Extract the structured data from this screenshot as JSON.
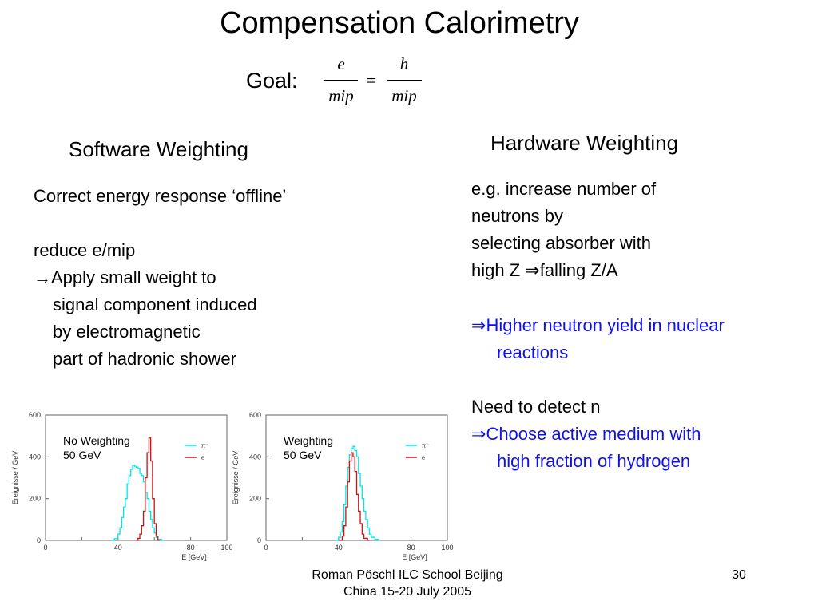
{
  "title": "Compensation Calorimetry",
  "goal": {
    "label": "Goal:",
    "left_numerator": "e",
    "left_denominator": "mip",
    "equals": "=",
    "right_numerator": "h",
    "right_denominator": "mip"
  },
  "software": {
    "heading": "Software Weighting",
    "line1": "Correct energy response ‘offline’",
    "line2": "reduce e/mip",
    "arrow": "→",
    "line3": "Apply small weight to",
    "line4": "signal component induced",
    "line5": "by electromagnetic",
    "line6": "part of hadronic shower"
  },
  "hardware": {
    "heading": "Hardware Weighting",
    "line1": "e.g. increase number of",
    "line2": "neutrons by",
    "line3": "selecting absorber with",
    "line4_a": "high Z ",
    "implies": "⇒",
    "line4_b": "falling Z/A",
    "blue1_a": "Higher neutron yield in nuclear",
    "blue1_b": "reactions",
    "line5": "Need to detect n",
    "blue2_a": "Choose active medium with",
    "blue2_b": "high fraction of hydrogen",
    "blue_color": "#1010e8"
  },
  "chart_data": [
    {
      "type": "line",
      "annotation_line1": "No Weighting",
      "annotation_line2": "50 GeV",
      "ylabel": "Ereignisse / GeV",
      "xlabel": "E  [GeV]",
      "xlim": [
        0,
        100
      ],
      "ylim": [
        0,
        600
      ],
      "xticks": [
        "0",
        "20",
        "40",
        "60",
        "80",
        "100"
      ],
      "yticks": [
        "0",
        "200",
        "400",
        "600"
      ],
      "legend": [
        "π⁻",
        "e"
      ],
      "series": [
        {
          "name": "π⁻",
          "color": "#00e5e5",
          "x": [
            36,
            38,
            40,
            41,
            42,
            43,
            44,
            45,
            46,
            47,
            48,
            49,
            50,
            51,
            52,
            53,
            54,
            55,
            56,
            57,
            58,
            59,
            60,
            61,
            62,
            64
          ],
          "values": [
            0,
            8,
            30,
            60,
            110,
            160,
            200,
            270,
            310,
            340,
            360,
            355,
            350,
            345,
            320,
            310,
            280,
            230,
            200,
            140,
            100,
            60,
            35,
            15,
            5,
            0
          ]
        },
        {
          "name": "e",
          "color": "#d01010",
          "x": [
            50,
            51,
            52,
            53,
            54,
            55,
            56,
            57,
            58,
            59,
            60,
            61,
            62
          ],
          "values": [
            0,
            10,
            30,
            70,
            140,
            300,
            420,
            490,
            380,
            200,
            80,
            20,
            0
          ]
        }
      ]
    },
    {
      "type": "line",
      "annotation_line1": "Weighting",
      "annotation_line2": "50 GeV",
      "ylabel": "Ereignisse / GeV",
      "xlabel": "E  [GeV]",
      "xlim": [
        0,
        100
      ],
      "ylim": [
        0,
        600
      ],
      "xticks": [
        "0",
        "20",
        "40",
        "60",
        "80",
        "100"
      ],
      "yticks": [
        "0",
        "200",
        "400",
        "600"
      ],
      "legend": [
        "π⁻",
        "e"
      ],
      "series": [
        {
          "name": "π⁻",
          "color": "#00e5e5",
          "x": [
            38,
            40,
            41,
            42,
            43,
            44,
            45,
            46,
            47,
            48,
            49,
            50,
            51,
            52,
            53,
            54,
            55,
            56,
            57,
            58,
            60,
            62
          ],
          "values": [
            0,
            15,
            40,
            90,
            170,
            260,
            350,
            410,
            440,
            450,
            430,
            400,
            320,
            260,
            200,
            140,
            100,
            60,
            30,
            15,
            5,
            0
          ]
        },
        {
          "name": "e",
          "color": "#d01010",
          "x": [
            40,
            42,
            43,
            44,
            45,
            46,
            47,
            48,
            49,
            50,
            51,
            52,
            53,
            54,
            56
          ],
          "values": [
            0,
            20,
            70,
            160,
            280,
            380,
            420,
            400,
            330,
            220,
            140,
            80,
            30,
            10,
            0
          ]
        }
      ]
    }
  ],
  "footer": {
    "line1": "Roman Pöschl  ILC School Beijing",
    "line2": "China 15-20 July 2005",
    "page_number": "30"
  }
}
